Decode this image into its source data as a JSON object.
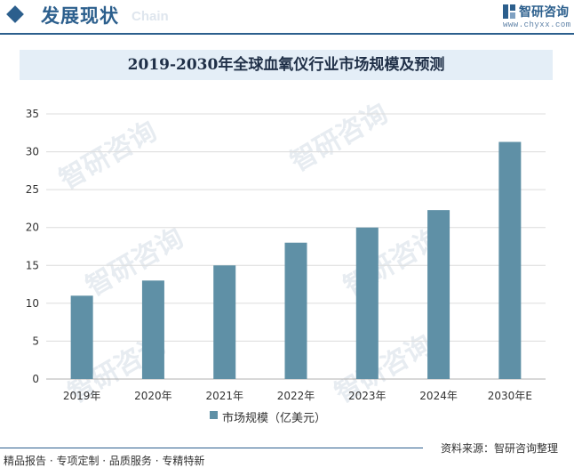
{
  "header": {
    "title": "发展现状",
    "subtitle": "Chain",
    "brand_name": "智研咨询",
    "brand_url": "www.chyxx.com"
  },
  "watermark": "智研咨询",
  "chart_data": {
    "type": "bar",
    "title": "2019-2030年全球血氧仪行业市场规模及预测",
    "categories": [
      "2019年",
      "2020年",
      "2021年",
      "2022年",
      "2023年",
      "2024年",
      "2030年E"
    ],
    "series": [
      {
        "name": "市场规模（亿美元）",
        "values": [
          11,
          13,
          15,
          18,
          20,
          22.3,
          31.3
        ]
      }
    ],
    "ylim": [
      0,
      35
    ],
    "yticks": [
      0,
      5,
      10,
      15,
      20,
      25,
      30,
      35
    ],
    "grid": true,
    "legend": "bottom",
    "bar_color": "#5f90a6"
  },
  "footer": {
    "left": "精品报告 · 专项定制 · 品质服务 · 专精特新",
    "source": "资料来源：智研咨询整理"
  }
}
